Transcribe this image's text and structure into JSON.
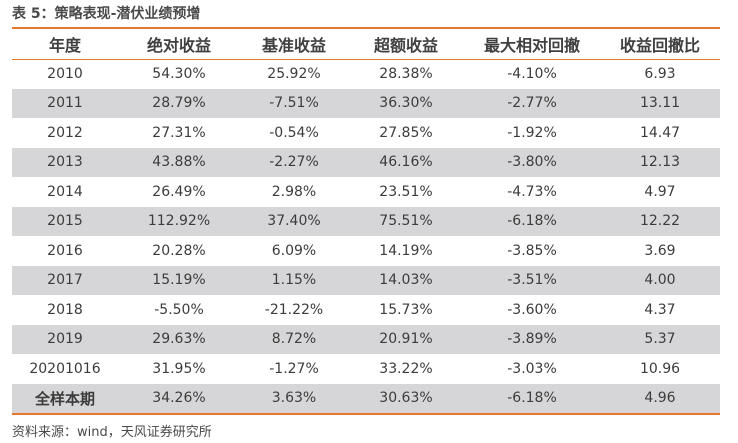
{
  "title": "表 5：策略表现-潜伏业绩预增",
  "header": [
    "年度",
    "绝对收益",
    "基准收益",
    "超额收益",
    "最大相对回撤",
    "收益回撤比"
  ],
  "rows": [
    [
      "2010",
      "54.30%",
      "25.92%",
      "28.38%",
      "-4.10%",
      "6.93"
    ],
    [
      "2011",
      "28.79%",
      "-7.51%",
      "36.30%",
      "-2.77%",
      "13.11"
    ],
    [
      "2012",
      "27.31%",
      "-0.54%",
      "27.85%",
      "-1.92%",
      "14.47"
    ],
    [
      "2013",
      "43.88%",
      "-2.27%",
      "46.16%",
      "-3.80%",
      "12.13"
    ],
    [
      "2014",
      "26.49%",
      "2.98%",
      "23.51%",
      "-4.73%",
      "4.97"
    ],
    [
      "2015",
      "112.92%",
      "37.40%",
      "75.51%",
      "-6.18%",
      "12.22"
    ],
    [
      "2016",
      "20.28%",
      "6.09%",
      "14.19%",
      "-3.85%",
      "3.69"
    ],
    [
      "2017",
      "15.19%",
      "1.15%",
      "14.03%",
      "-3.51%",
      "4.00"
    ],
    [
      "2018",
      "-5.50%",
      "-21.22%",
      "15.73%",
      "-3.60%",
      "4.37"
    ],
    [
      "2019",
      "29.63%",
      "8.72%",
      "20.91%",
      "-3.89%",
      "5.37"
    ],
    [
      "20201016",
      "31.95%",
      "-1.27%",
      "33.22%",
      "-3.03%",
      "10.96"
    ],
    [
      "全样本期",
      "34.26%",
      "3.63%",
      "30.63%",
      "-6.18%",
      "4.96"
    ]
  ],
  "source": "资料来源：wind，天风证券研究所",
  "colors": {
    "accent_rule": "#e8772e",
    "shaded_row": "#d6d6d8"
  }
}
